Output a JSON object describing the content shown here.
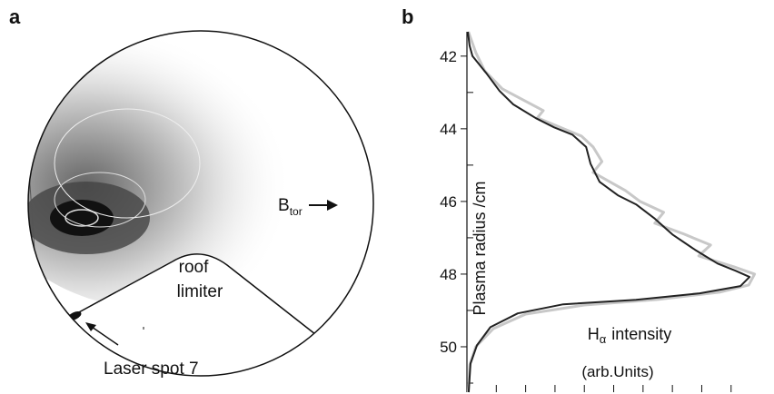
{
  "panel_a": {
    "label": "a",
    "roof_label": "roof",
    "limiter_label": "limiter",
    "laser_label": "Laser spot 7",
    "field_label": {
      "symbol": "B",
      "subscript": "tor"
    }
  },
  "chart_data": {
    "type": "line",
    "panel_label": "b",
    "y_label": "Plasma radius /cm",
    "x_label_parts": [
      "H",
      "α",
      "intensity"
    ],
    "x_label_units": "(arb.Units)",
    "xlim": [
      0,
      10.4
    ],
    "xticks": [
      1,
      2,
      3,
      4,
      5,
      6,
      7,
      8,
      9
    ],
    "ylim": [
      41.33,
      51.25
    ],
    "y_inverted": true,
    "yticks": [
      42,
      44,
      46,
      48,
      50
    ],
    "yticks_minor": [
      43,
      45,
      47,
      49,
      51
    ],
    "series": [
      {
        "color": "#c8c8c8",
        "width": 3,
        "x": [
          0.05,
          0.3,
          0.6,
          1.2,
          1.9,
          2.6,
          2.4,
          3.3,
          3.9,
          4.3,
          4.6,
          4.3,
          5.4,
          5.9,
          6.7,
          6.4,
          7.4,
          8.3,
          7.9,
          9.1,
          9.8,
          9.6,
          8.6,
          6.5,
          4.0,
          2.0,
          0.9,
          0.3,
          0.1,
          0.05
        ],
        "y": [
          41.33,
          41.9,
          42.4,
          42.9,
          43.2,
          43.5,
          43.7,
          44.0,
          44.2,
          44.5,
          44.9,
          45.2,
          45.7,
          46.0,
          46.3,
          46.6,
          46.9,
          47.2,
          47.5,
          47.8,
          48.0,
          48.3,
          48.5,
          48.7,
          48.85,
          49.1,
          49.5,
          50.0,
          50.5,
          51.25
        ]
      },
      {
        "color": "#222222",
        "width": 2,
        "x": [
          0.03,
          0.09,
          0.19,
          0.65,
          1.11,
          1.58,
          2.35,
          2.97,
          3.59,
          4.06,
          4.21,
          4.52,
          5.14,
          5.76,
          6.38,
          7.0,
          7.77,
          8.54,
          9.16,
          9.63,
          9.32,
          7.93,
          5.76,
          3.28,
          1.73,
          0.8,
          0.34,
          0.12,
          0.06
        ],
        "y": [
          41.33,
          41.71,
          42.0,
          42.46,
          42.96,
          43.33,
          43.71,
          43.96,
          44.16,
          44.5,
          44.96,
          45.46,
          45.83,
          46.08,
          46.46,
          46.91,
          47.33,
          47.71,
          47.91,
          48.08,
          48.33,
          48.53,
          48.71,
          48.83,
          49.08,
          49.46,
          49.96,
          50.46,
          51.25
        ]
      }
    ]
  }
}
